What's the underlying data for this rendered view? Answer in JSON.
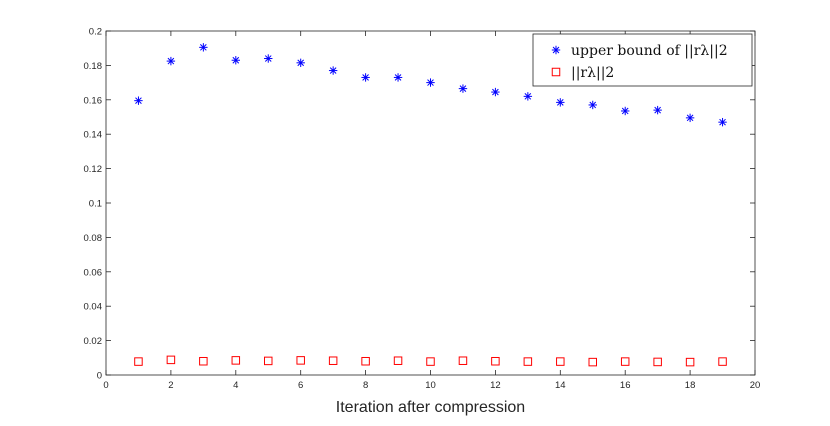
{
  "chart_data": {
    "type": "scatter",
    "title": "",
    "xlabel": "Iteration after compression",
    "ylabel": "",
    "xlim": [
      0,
      20
    ],
    "ylim": [
      0,
      0.2
    ],
    "xticks": [
      0,
      2,
      4,
      6,
      8,
      10,
      12,
      14,
      16,
      18,
      20
    ],
    "xtick_labels": [
      "0",
      "2",
      "4",
      "6",
      "8",
      "10",
      "12",
      "14",
      "16",
      "18",
      "20"
    ],
    "yticks": [
      0,
      0.02,
      0.04,
      0.06,
      0.08,
      0.1,
      0.12,
      0.14,
      0.16,
      0.18,
      0.2
    ],
    "ytick_labels": [
      "0",
      "0.02",
      "0.04",
      "0.06",
      "0.08",
      "0.1",
      "0.12",
      "0.14",
      "0.16",
      "0.18",
      "0.2"
    ],
    "grid": false,
    "legend_position": "top-right",
    "x": [
      1,
      2,
      3,
      4,
      5,
      6,
      7,
      8,
      9,
      10,
      11,
      12,
      13,
      14,
      15,
      16,
      17,
      18,
      19
    ],
    "series": [
      {
        "name": "upper bound of ||r_λ||_2",
        "legend_text": "upper bound of ||rλ||2",
        "marker": "asterisk",
        "color": "#0000ff",
        "values": [
          0.1595,
          0.1825,
          0.1905,
          0.183,
          0.184,
          0.1815,
          0.177,
          0.173,
          0.173,
          0.17,
          0.1665,
          0.1645,
          0.162,
          0.1585,
          0.157,
          0.1535,
          0.154,
          0.1495,
          0.147
        ]
      },
      {
        "name": "||r_λ||_2",
        "legend_text": "||rλ||2",
        "marker": "square",
        "color": "#ff0000",
        "values": [
          0.0078,
          0.0088,
          0.008,
          0.0085,
          0.0082,
          0.0085,
          0.0083,
          0.008,
          0.0083,
          0.0078,
          0.0083,
          0.008,
          0.0078,
          0.0078,
          0.0075,
          0.0078,
          0.0076,
          0.0075,
          0.0078
        ]
      }
    ]
  }
}
